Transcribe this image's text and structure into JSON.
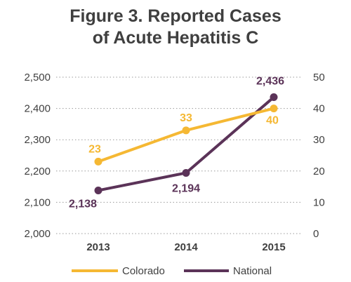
{
  "title_line1": "Figure 3. Reported Cases",
  "title_line2": "of Acute Hepatitis C",
  "chart_data": {
    "type": "line",
    "categories": [
      "2013",
      "2014",
      "2015"
    ],
    "y_left": {
      "ylim": [
        2000,
        2500
      ],
      "ticks": [
        2000,
        2100,
        2200,
        2300,
        2400,
        2500
      ],
      "tick_labels": [
        "2,000",
        "2,100",
        "2,200",
        "2,300",
        "2,400",
        "2,500"
      ]
    },
    "y_right": {
      "ylim": [
        0,
        50
      ],
      "ticks": [
        0,
        10,
        20,
        30,
        40,
        50
      ],
      "tick_labels": [
        "0",
        "10",
        "20",
        "30",
        "40",
        "50"
      ]
    },
    "grid": "horizontal dotted",
    "legend_position": "bottom",
    "series": [
      {
        "name": "Colorado",
        "axis": "right",
        "color": "#f5b833",
        "values": [
          23,
          33,
          40
        ],
        "labels": [
          "23",
          "33",
          "40"
        ]
      },
      {
        "name": "National",
        "axis": "left",
        "color": "#5b3358",
        "values": [
          2138,
          2194,
          2436
        ],
        "labels": [
          "2,138",
          "2,194",
          "2,436"
        ]
      }
    ]
  }
}
